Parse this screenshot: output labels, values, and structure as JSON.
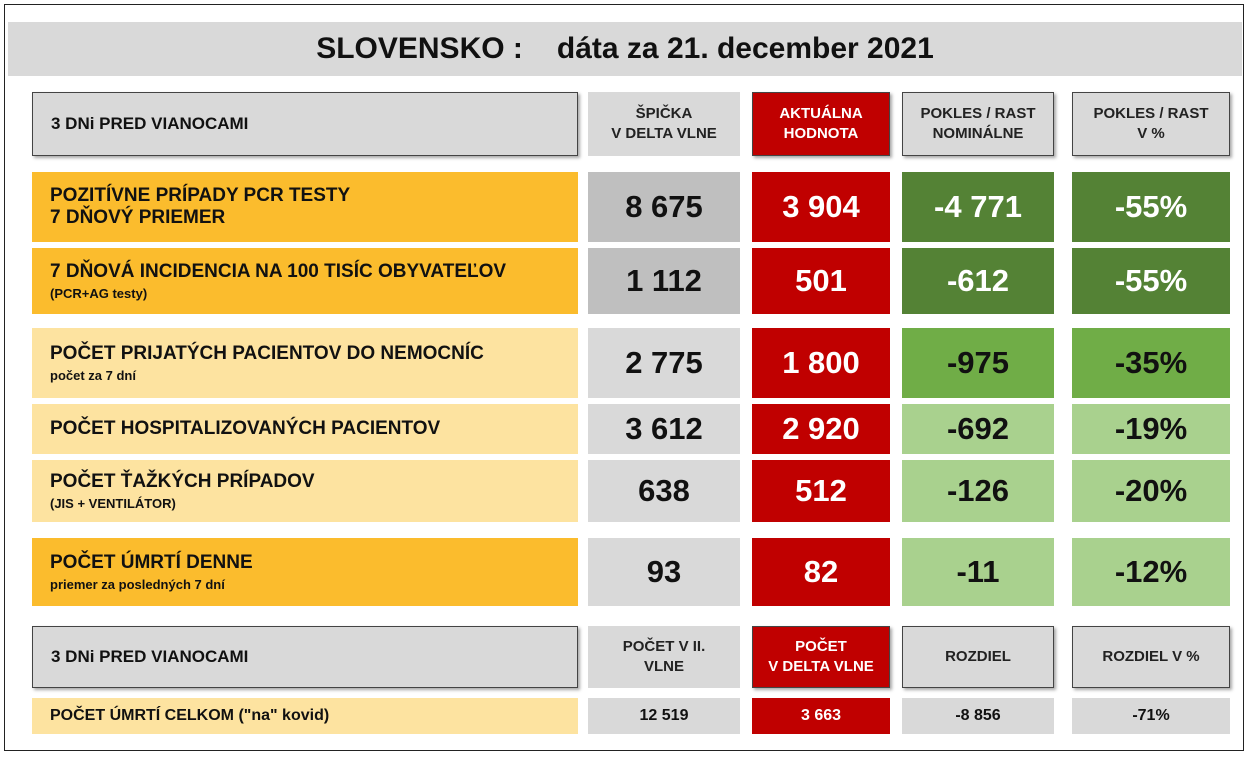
{
  "title": {
    "country": "SLOVENSKO :",
    "date": "dáta za 21. december 2021"
  },
  "header": {
    "label": "3 DNi PRED VIANOCAMI",
    "peak_line1": "ŠPIČKA",
    "peak_line2": "V DELTA VLNE",
    "current_line1": "AKTUÁLNA",
    "current_line2": "HODNOTA",
    "nominal_line1": "POKLES / RAST",
    "nominal_line2": "NOMINÁLNE",
    "percent_line1": "POKLES / RAST",
    "percent_line2": "V %"
  },
  "rows": [
    {
      "label": "POZITÍVNE PRÍPADY PCR TESTY",
      "sublabel": "7 DŇOVÝ PRIEMER",
      "peak": "8 675",
      "current": "3 904",
      "nominal": "-4 771",
      "percent": "-55%"
    },
    {
      "label": "7 DŇOVÁ INCIDENCIA NA 100 TISÍC OBYVATEĽOV",
      "sublabel": "(PCR+AG testy)",
      "peak": "1 112",
      "current": "501",
      "nominal": "-612",
      "percent": "-55%"
    },
    {
      "label": "POČET PRIJATÝCH PACIENTOV DO NEMOCNÍC",
      "sublabel": "počet za 7 dní",
      "peak": "2 775",
      "current": "1 800",
      "nominal": "-975",
      "percent": "-35%"
    },
    {
      "label": "POČET HOSPITALIZOVANÝCH PACIENTOV",
      "sublabel": "",
      "peak": "3 612",
      "current": "2 920",
      "nominal": "-692",
      "percent": "-19%"
    },
    {
      "label": "POČET ŤAŽKÝCH PRÍPADOV",
      "sublabel": "(JIS + VENTILÁTOR)",
      "peak": "638",
      "current": "512",
      "nominal": "-126",
      "percent": "-20%"
    },
    {
      "label": "POČET ÚMRTÍ DENNE",
      "sublabel": "priemer za posledných 7 dní",
      "peak": "93",
      "current": "82",
      "nominal": "-11",
      "percent": "-12%"
    }
  ],
  "footer_header": {
    "label": "3 DNi PRED VIANOCAMI",
    "wave2_line1": "POČET V II.",
    "wave2_line2": "VLNE",
    "delta_line1": "POČET",
    "delta_line2": "V DELTA VLNE",
    "diff": "ROZDIEL",
    "diff_pct": "ROZDIEL V %"
  },
  "footer_row": {
    "label": "POČET ÚMRTÍ CELKOM  (\"na\" kovid)",
    "wave2": "12 519",
    "delta": "3 663",
    "diff": "-8 856",
    "diff_pct": "-71%"
  },
  "colors": {
    "red": "#c00000",
    "orange": "#fbbc2d",
    "light_orange": "#fde3a0",
    "dark_green": "#548235",
    "mid_green": "#70ad47",
    "light_green": "#a9d18e",
    "gray": "#d9d9d9"
  }
}
